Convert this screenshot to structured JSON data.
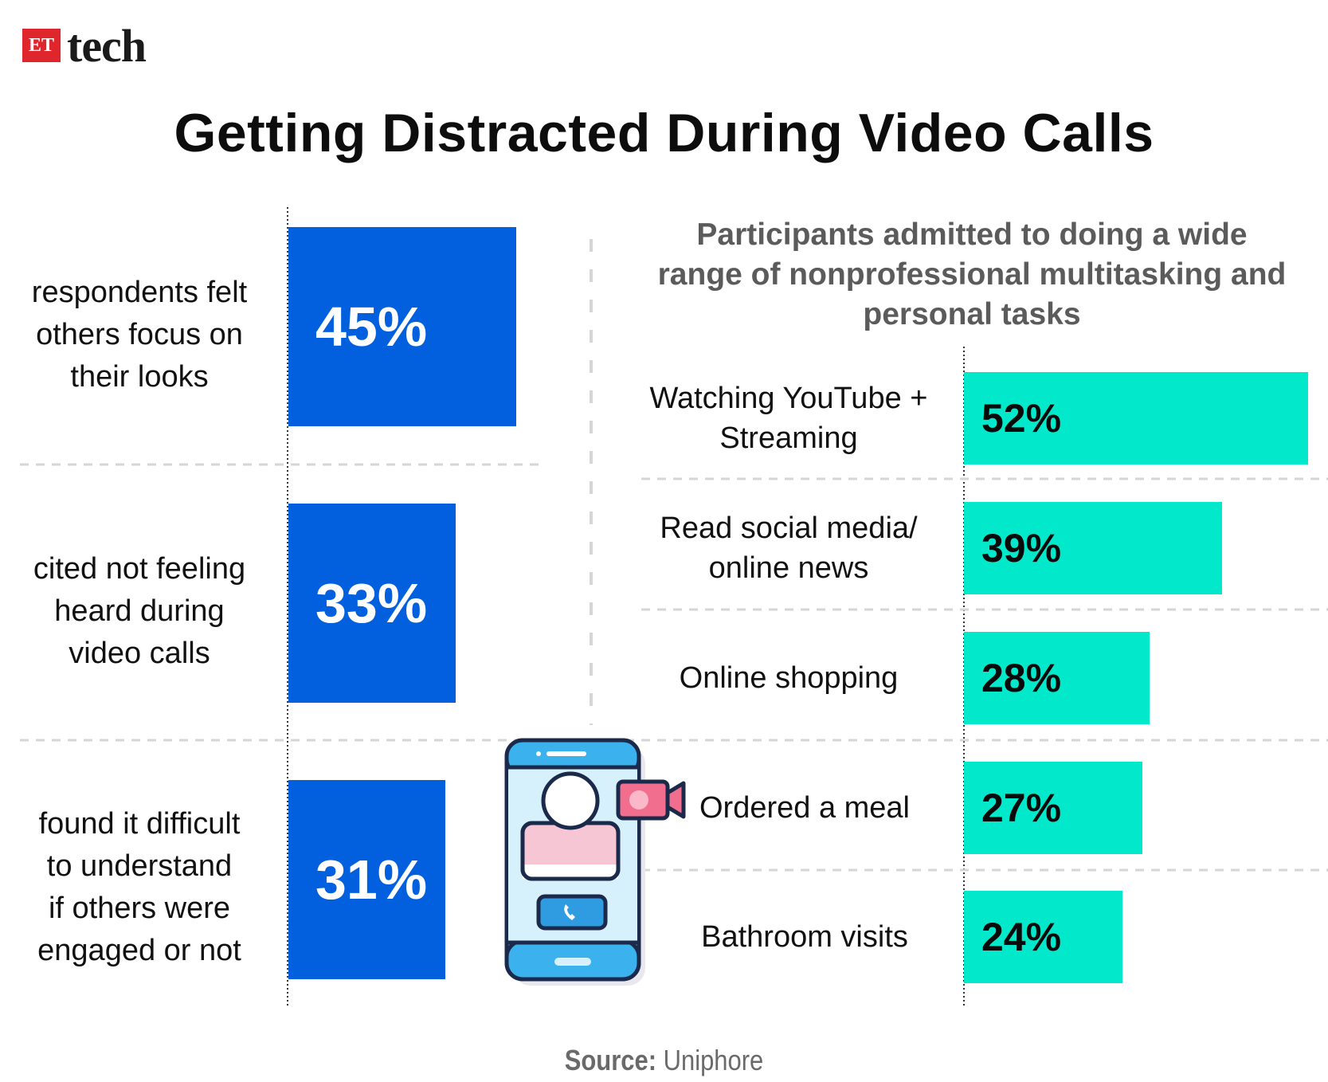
{
  "brand": {
    "et": "ET",
    "tech": "tech"
  },
  "chart_data": [
    {
      "type": "bar",
      "title": "Getting Distracted During Video Calls",
      "categories": [
        "respondents felt others focus on their looks",
        "cited not feeling heard during video calls",
        "found it difficult to understand if others were engaged or not"
      ],
      "values": [
        45,
        33,
        31
      ],
      "value_labels": [
        "45%",
        "33%",
        "31%"
      ],
      "label_lines": [
        [
          "respondents felt",
          "others focus on",
          "their looks"
        ],
        [
          "cited not feeling",
          "heard during",
          "video calls"
        ],
        [
          "found it difficult",
          "to understand",
          "if others were",
          "engaged or not"
        ]
      ],
      "orientation": "horizontal",
      "color": "#0260de"
    },
    {
      "type": "bar",
      "subtitle_lines": [
        "Participants admitted to doing a wide",
        "range of nonprofessional multitasking and",
        "personal tasks"
      ],
      "categories": [
        "Watching YouTube + Streaming",
        "Read social media/ online news",
        "Online shopping",
        "Ordered a meal",
        "Bathroom visits"
      ],
      "label_lines": [
        [
          "Watching YouTube +",
          "Streaming"
        ],
        [
          "Read social media/",
          "online news"
        ],
        [
          "Online shopping"
        ],
        [
          "Ordered a meal"
        ],
        [
          "Bathroom visits"
        ]
      ],
      "values": [
        52,
        39,
        28,
        27,
        24
      ],
      "value_labels": [
        "52%",
        "39%",
        "28%",
        "27%",
        "24%"
      ],
      "orientation": "horizontal",
      "color": "#02e8ca"
    }
  ],
  "source": {
    "label": "Source:",
    "name": " Uniphore"
  }
}
